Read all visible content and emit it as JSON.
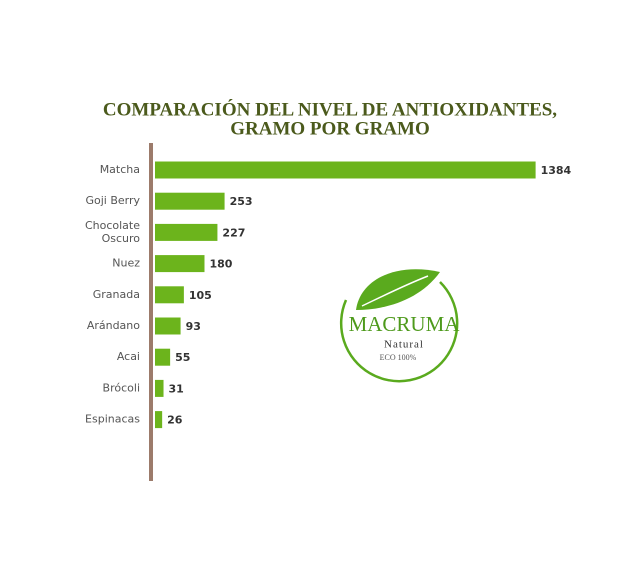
{
  "chart_data": {
    "type": "barh",
    "title": [
      "COMPARACIÓN DEL NIVEL DE ANTIOXIDANTES,",
      "GRAMO POR GRAMO"
    ],
    "categories": [
      "Matcha",
      "Goji Berry",
      "Chocolate\nOscuro",
      "Nuez",
      "Granada",
      "Arándano",
      "Acai",
      "Brócoli",
      "Espinacas"
    ],
    "values": [
      1384,
      253,
      227,
      180,
      105,
      93,
      55,
      31,
      26
    ],
    "color": "#6cb41c",
    "xlim": [
      0,
      1400
    ]
  },
  "logo": {
    "name": "MACRUMA",
    "subtitle": "Natural",
    "tagline": "ECO 100%"
  }
}
